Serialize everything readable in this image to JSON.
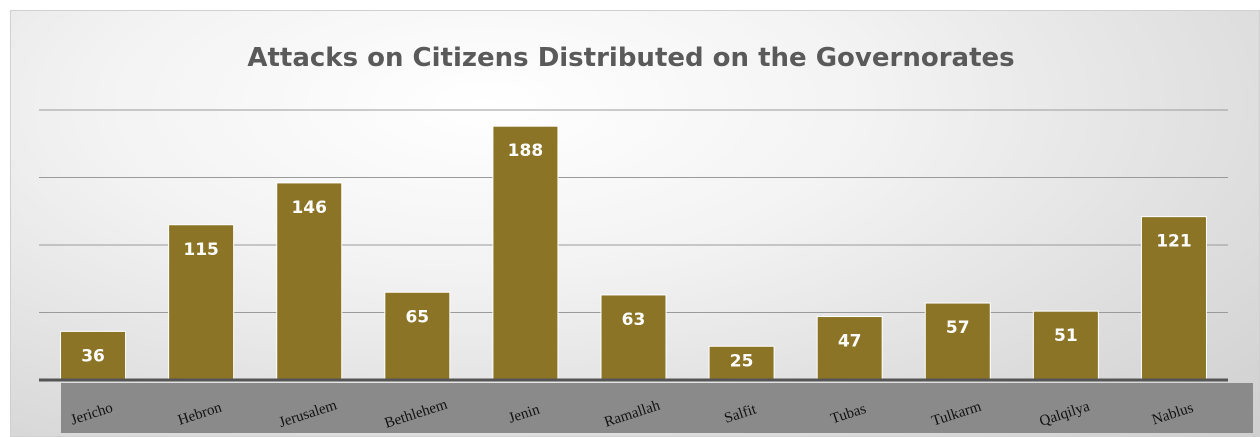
{
  "chart_data": {
    "type": "bar",
    "title": "Attacks on Citizens Distributed on the Governorates",
    "categories": [
      "Jericho",
      "Hebron",
      "Jerusalem",
      "Bethlehem",
      "Jenin",
      "Ramallah",
      "Salfit",
      "Tubas",
      "Tulkarm",
      "Qalqilya",
      "Nablus"
    ],
    "values": [
      36,
      115,
      146,
      65,
      188,
      63,
      25,
      47,
      57,
      51,
      121
    ],
    "ylim": [
      0,
      200
    ],
    "grid": true,
    "legend": "none",
    "colors": {
      "bar": "#8b7426",
      "bar_label": "#ffffff",
      "category_band": "#8a8a8a",
      "axis": "#555555",
      "gridline": "#9a9a9a",
      "title": "#5a5a5a"
    }
  }
}
